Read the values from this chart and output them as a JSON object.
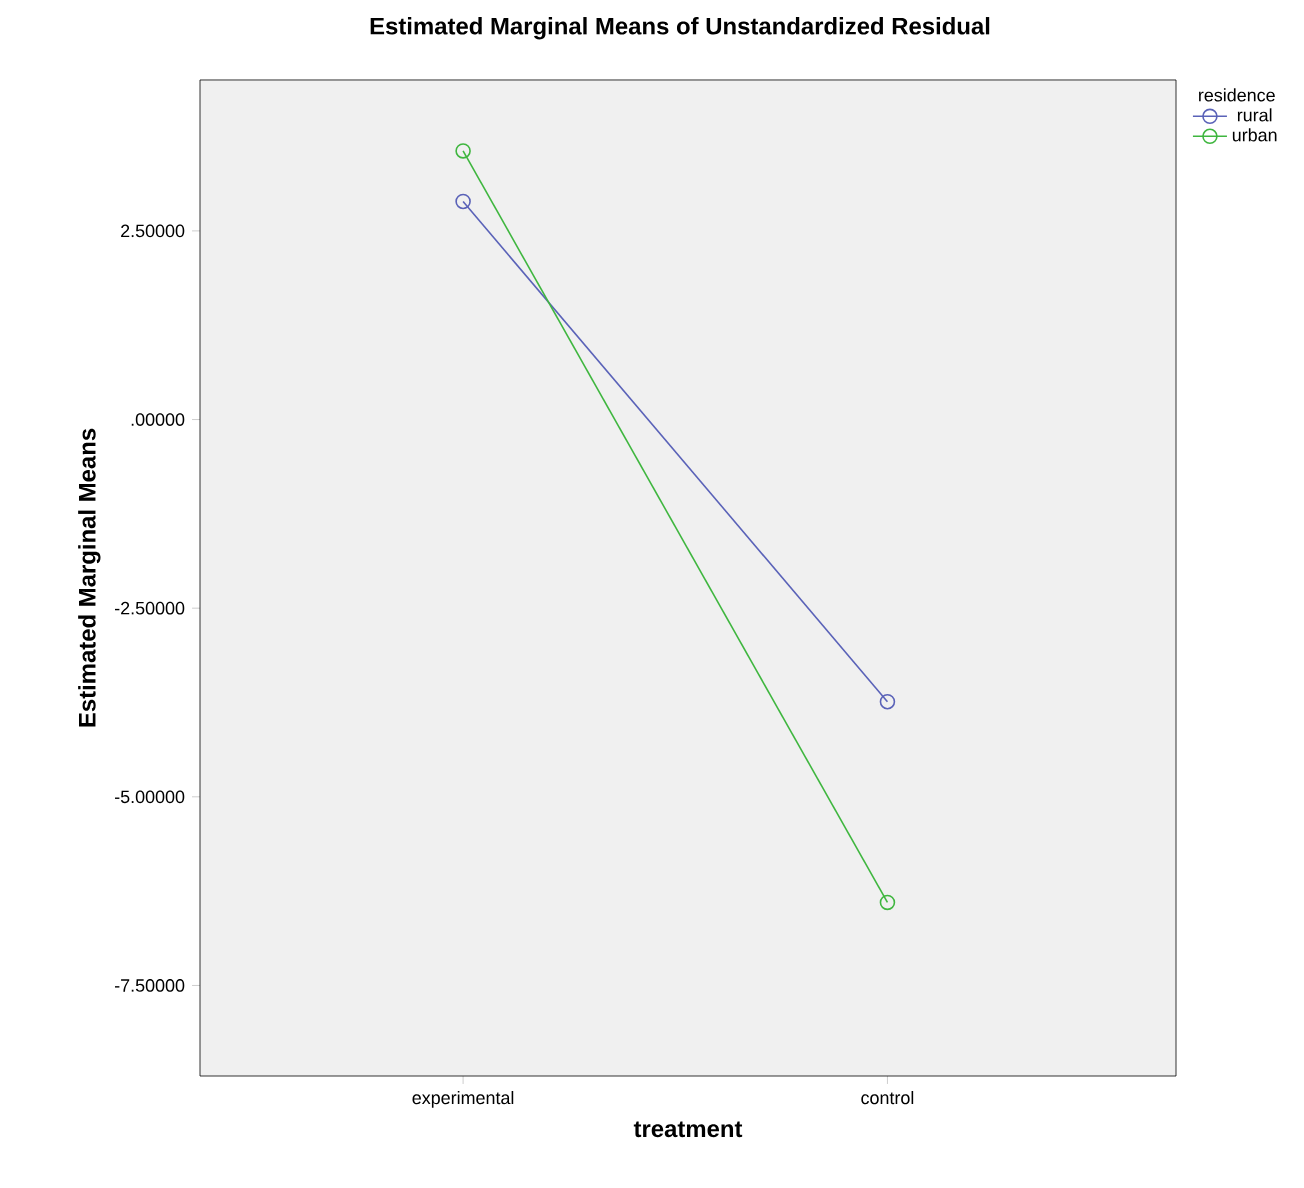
{
  "chart_data": {
    "type": "line",
    "title": "Estimated Marginal Means of Unstandardized Residual",
    "xlabel": "treatment",
    "ylabel": "Estimated Marginal Means",
    "legend_title": "residence",
    "categories": [
      "experimental",
      "control"
    ],
    "series": [
      {
        "name": "rural",
        "color": "#5a62b8",
        "values": [
          2.89,
          -3.74
        ]
      },
      {
        "name": "urban",
        "color": "#3fb63f",
        "values": [
          3.56,
          -6.4
        ]
      }
    ],
    "ylim": [
      -8.7,
      4.5
    ],
    "yticks": [
      {
        "value": -7.5,
        "label": "-7.50000"
      },
      {
        "value": -5,
        "label": "-5.00000"
      },
      {
        "value": -2.5,
        "label": "-2.50000"
      },
      {
        "value": 0,
        "label": ".00000"
      },
      {
        "value": 2.5,
        "label": "2.50000"
      }
    ],
    "marker": "circle",
    "line_style": "solid",
    "legend": "top right",
    "grid": false
  }
}
